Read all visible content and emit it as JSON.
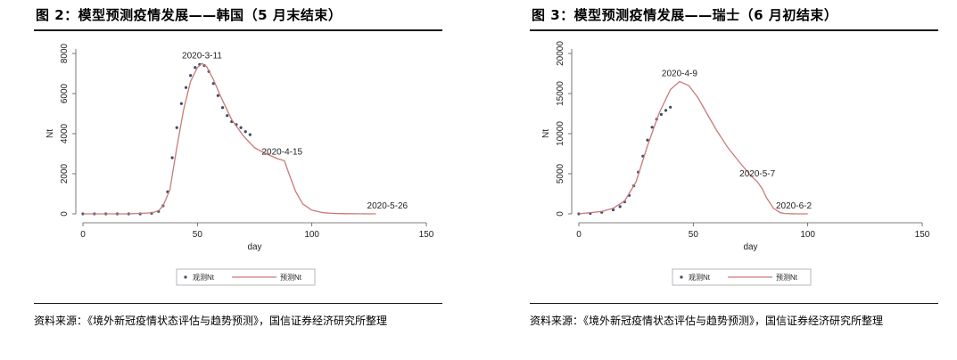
{
  "left_panel": {
    "title": "图 2：模型预测疫情发展——韩国（5 月末结束）",
    "source": "资料来源：《境外新冠疫情状态评估与趋势预测》，国信证券经济研究所整理"
  },
  "right_panel": {
    "title": "图 3：模型预测疫情发展——瑞士（6 月初结束）",
    "source": "资料来源：《境外新冠疫情状态评估与趋势预测》，国信证券经济研究所整理"
  },
  "chart_data": [
    {
      "type": "line",
      "xlabel": "day",
      "ylabel": "Nt",
      "xlim": [
        0,
        150
      ],
      "ylim": [
        0,
        8000
      ],
      "xticks": [
        "0",
        "50",
        "100",
        "150"
      ],
      "yticks": [
        "0",
        "2000",
        "4000",
        "6000",
        "8000"
      ],
      "legend_position": "bottom-center",
      "series": [
        {
          "name": "观测Nt",
          "style": "markers",
          "color": "#3b4a6b",
          "x": [
            0,
            5,
            10,
            15,
            20,
            25,
            30,
            33,
            35,
            37,
            39,
            41,
            43,
            45,
            47,
            49,
            51,
            53,
            55,
            57,
            59,
            61,
            63,
            65,
            67,
            69,
            71,
            73
          ],
          "y": [
            0,
            0,
            0,
            0,
            0,
            0,
            30,
            120,
            400,
            1100,
            2800,
            4300,
            5500,
            6300,
            6900,
            7300,
            7450,
            7400,
            7100,
            6500,
            5900,
            5300,
            4900,
            4600,
            4450,
            4300,
            4100,
            3950
          ]
        },
        {
          "name": "预测Nt",
          "style": "line",
          "color": "#c97a7a",
          "x": [
            0,
            10,
            20,
            30,
            33,
            35,
            38,
            41,
            44,
            47,
            50,
            52,
            54,
            57,
            60,
            65,
            70,
            75,
            80,
            85,
            88,
            90,
            93,
            96,
            100,
            105,
            110,
            115,
            120,
            125,
            128
          ],
          "y": [
            0,
            0,
            0,
            50,
            150,
            400,
            1200,
            3300,
            5200,
            6600,
            7300,
            7500,
            7350,
            6700,
            5900,
            4700,
            3900,
            3300,
            3000,
            2750,
            2650,
            2000,
            1100,
            500,
            180,
            60,
            20,
            10,
            5,
            2,
            0
          ]
        }
      ],
      "annotations": [
        {
          "text": "2020-3-11",
          "x": 52,
          "y": 7500
        },
        {
          "text": "2020-4-15",
          "x": 87,
          "y": 2700
        },
        {
          "text": "2020-5-26",
          "x": 128,
          "y": 0
        }
      ]
    },
    {
      "type": "line",
      "xlabel": "day",
      "ylabel": "Nt",
      "xlim": [
        0,
        150
      ],
      "ylim": [
        0,
        20000
      ],
      "xticks": [
        "0",
        "50",
        "100",
        "150"
      ],
      "yticks": [
        "0",
        "5000",
        "10000",
        "15000",
        "20000"
      ],
      "legend_position": "bottom-center",
      "series": [
        {
          "name": "观测Nt",
          "style": "markers",
          "color": "#3b4a6b",
          "x": [
            0,
            5,
            10,
            15,
            18,
            20,
            22,
            24,
            26,
            28,
            30,
            32,
            34,
            36,
            38,
            40
          ],
          "y": [
            0,
            50,
            200,
            500,
            900,
            1500,
            2300,
            3500,
            5200,
            7200,
            9200,
            10800,
            11800,
            12400,
            12900,
            13300
          ]
        },
        {
          "name": "预测Nt",
          "style": "line",
          "color": "#c97a7a",
          "x": [
            0,
            10,
            15,
            20,
            25,
            30,
            35,
            40,
            44,
            48,
            52,
            56,
            60,
            65,
            70,
            75,
            78,
            80,
            82,
            85,
            88,
            90,
            95,
            100
          ],
          "y": [
            0,
            300,
            700,
            1600,
            4000,
            8500,
            12500,
            15500,
            16500,
            16000,
            14500,
            12500,
            10500,
            8300,
            6500,
            4800,
            4000,
            3200,
            2000,
            700,
            150,
            50,
            5,
            0
          ]
        }
      ],
      "annotations": [
        {
          "text": "2020-4-9",
          "x": 44,
          "y": 16500
        },
        {
          "text": "2020-5-7",
          "x": 78,
          "y": 4000
        },
        {
          "text": "2020-6-2",
          "x": 90,
          "y": 0
        }
      ]
    }
  ]
}
